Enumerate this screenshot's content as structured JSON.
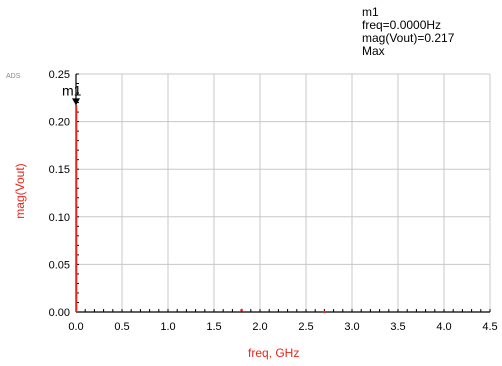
{
  "marker": {
    "name": "m1",
    "freq_line": "freq=0.0000Hz",
    "mag_line": "mag(Vout)=0.217",
    "mode_line": "Max",
    "plot_label": "m1"
  },
  "logo_text": "ADS",
  "chart_data": {
    "type": "line",
    "xlabel": "freq, GHz",
    "ylabel": "mag(Vout)",
    "xlim": [
      0.0,
      4.5
    ],
    "ylim": [
      0.0,
      0.25
    ],
    "x_ticks": [
      "0.0",
      "0.5",
      "1.0",
      "1.5",
      "2.0",
      "2.5",
      "3.0",
      "3.5",
      "4.0",
      "4.5"
    ],
    "y_ticks": [
      "0.00",
      "0.05",
      "0.10",
      "0.15",
      "0.20",
      "0.25"
    ],
    "grid": true,
    "series": [
      {
        "color": "#e8261c",
        "x": [
          0.0,
          0.0,
          1.8,
          2.7
        ],
        "y": [
          0.217,
          0.0,
          0.002,
          0.0
        ]
      }
    ],
    "marker_point": {
      "x": 0.0,
      "y": 0.217
    }
  },
  "colors": {
    "trace": "#e8261c",
    "grid": "#c8c8c8",
    "axis": "#000000",
    "label": "#e8261c"
  }
}
